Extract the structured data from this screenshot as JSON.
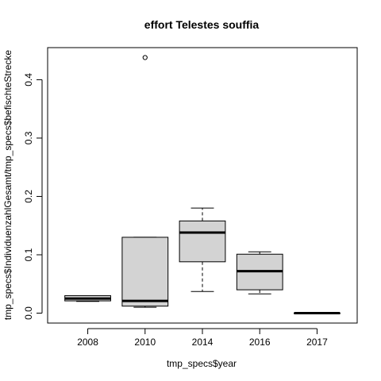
{
  "chart_data": {
    "type": "box",
    "title": "effort Telestes souffia",
    "xlabel": "tmp_specs$year",
    "ylabel": "tmp_specs$IndividuenzahlGesamt/tmp_specs$befischteStrecke",
    "categories": [
      "2008",
      "2010",
      "2014",
      "2016",
      "2017"
    ],
    "ylim": [
      -0.017,
      0.455
    ],
    "yticks": [
      0.0,
      0.1,
      0.2,
      0.3,
      0.4
    ],
    "ytick_labels": [
      "0.0",
      "0.1",
      "0.2",
      "0.3",
      "0.4"
    ],
    "boxes": [
      {
        "category": "2008",
        "min": 0.02,
        "q1": 0.021,
        "median": 0.025,
        "q3": 0.03,
        "max": 0.03,
        "outliers": []
      },
      {
        "category": "2010",
        "min": 0.01,
        "q1": 0.012,
        "median": 0.021,
        "q3": 0.13,
        "max": 0.13,
        "outliers": [
          0.438
        ]
      },
      {
        "category": "2014",
        "min": 0.037,
        "q1": 0.088,
        "median": 0.138,
        "q3": 0.158,
        "max": 0.18,
        "outliers": []
      },
      {
        "category": "2016",
        "min": 0.033,
        "q1": 0.04,
        "median": 0.072,
        "q3": 0.101,
        "max": 0.105,
        "outliers": []
      },
      {
        "category": "2017",
        "min": 0.0,
        "q1": 0.0,
        "median": 0.0,
        "q3": 0.0,
        "max": 0.0,
        "outliers": []
      }
    ],
    "box_fill": "#d3d3d3",
    "line_color": "#000000",
    "grid": false,
    "legend": "none"
  }
}
